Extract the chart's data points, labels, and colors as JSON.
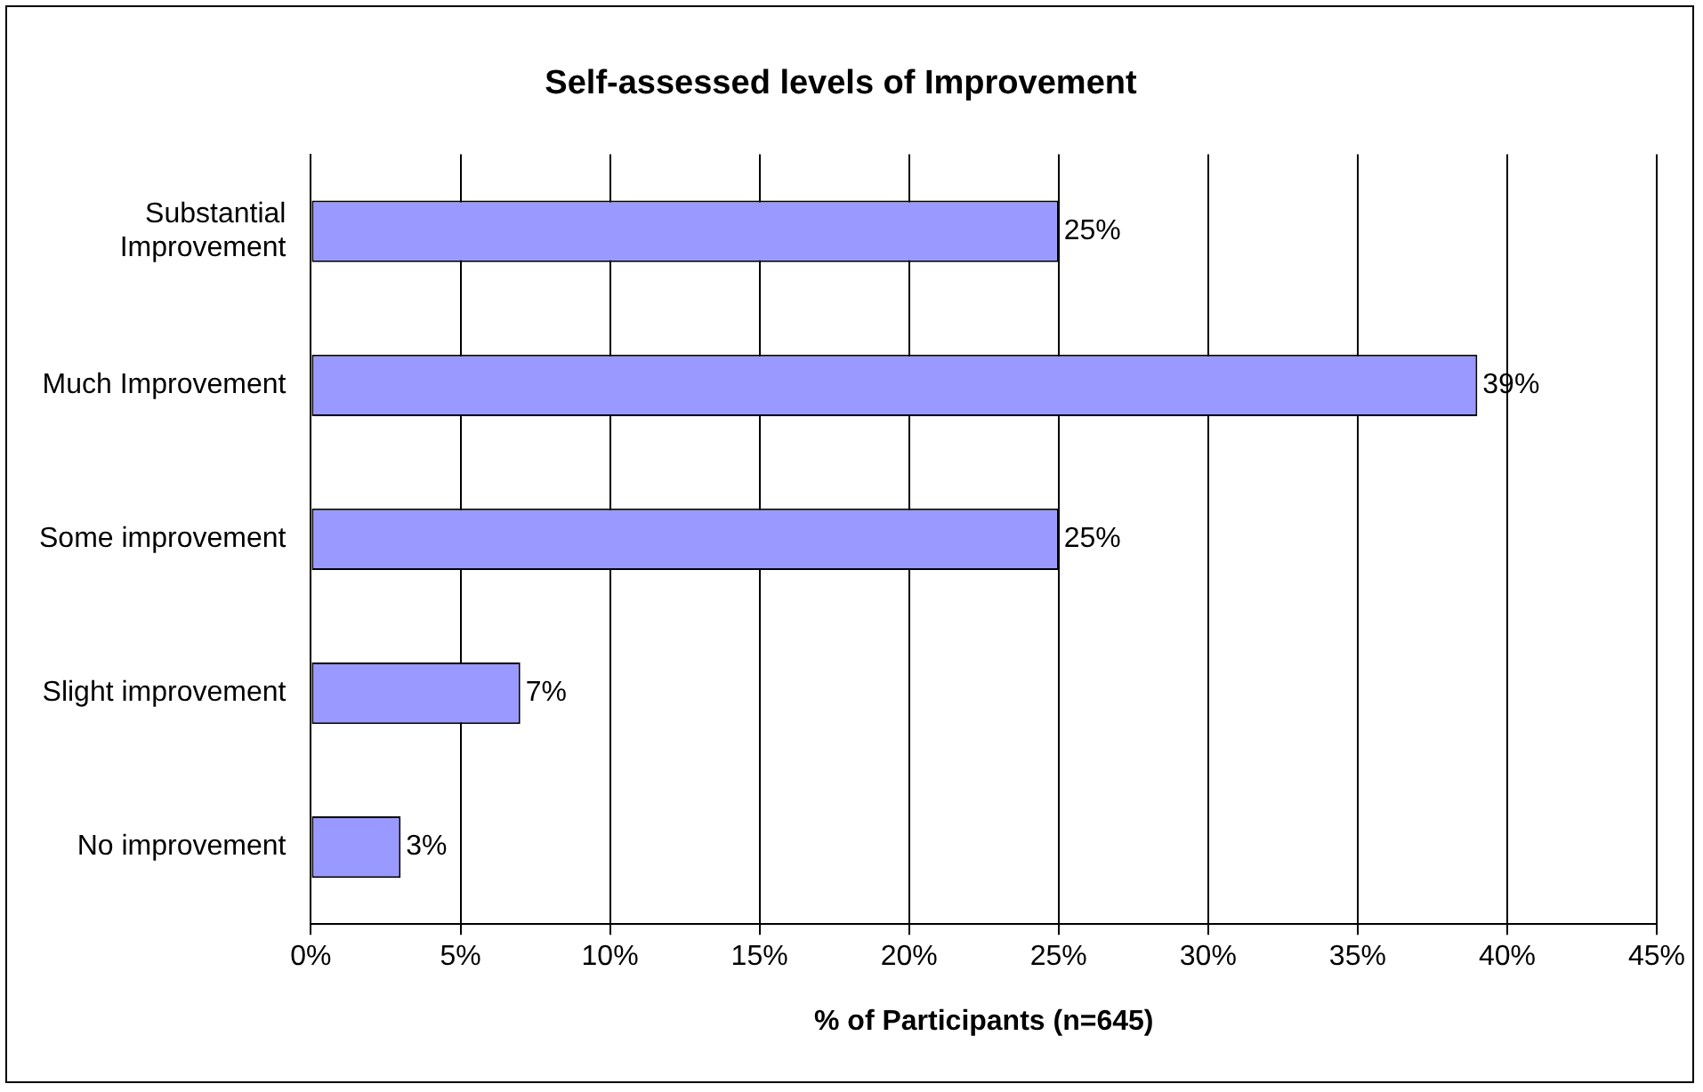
{
  "chart_data": {
    "type": "bar",
    "orientation": "horizontal",
    "title": "Self-assessed levels of Improvement",
    "xlabel": "% of Participants (n=645)",
    "categories": [
      "Substantial Improvement",
      "Much Improvement",
      "Some improvement",
      "Slight improvement",
      "No improvement"
    ],
    "values": [
      25,
      39,
      25,
      7,
      3
    ],
    "value_labels": [
      "25%",
      "39%",
      "25%",
      "7%",
      "3%"
    ],
    "color": "#9999ff",
    "xlim": [
      0,
      45
    ],
    "xticks": [
      {
        "value": 0,
        "label": "0%"
      },
      {
        "value": 5,
        "label": "5%"
      },
      {
        "value": 10,
        "label": "10%"
      },
      {
        "value": 15,
        "label": "15%"
      },
      {
        "value": 20,
        "label": "20%"
      },
      {
        "value": 25,
        "label": "25%"
      },
      {
        "value": 30,
        "label": "30%"
      },
      {
        "value": 35,
        "label": "35%"
      },
      {
        "value": 40,
        "label": "40%"
      },
      {
        "value": 45,
        "label": "45%"
      }
    ],
    "grid": "x",
    "legend": false
  }
}
